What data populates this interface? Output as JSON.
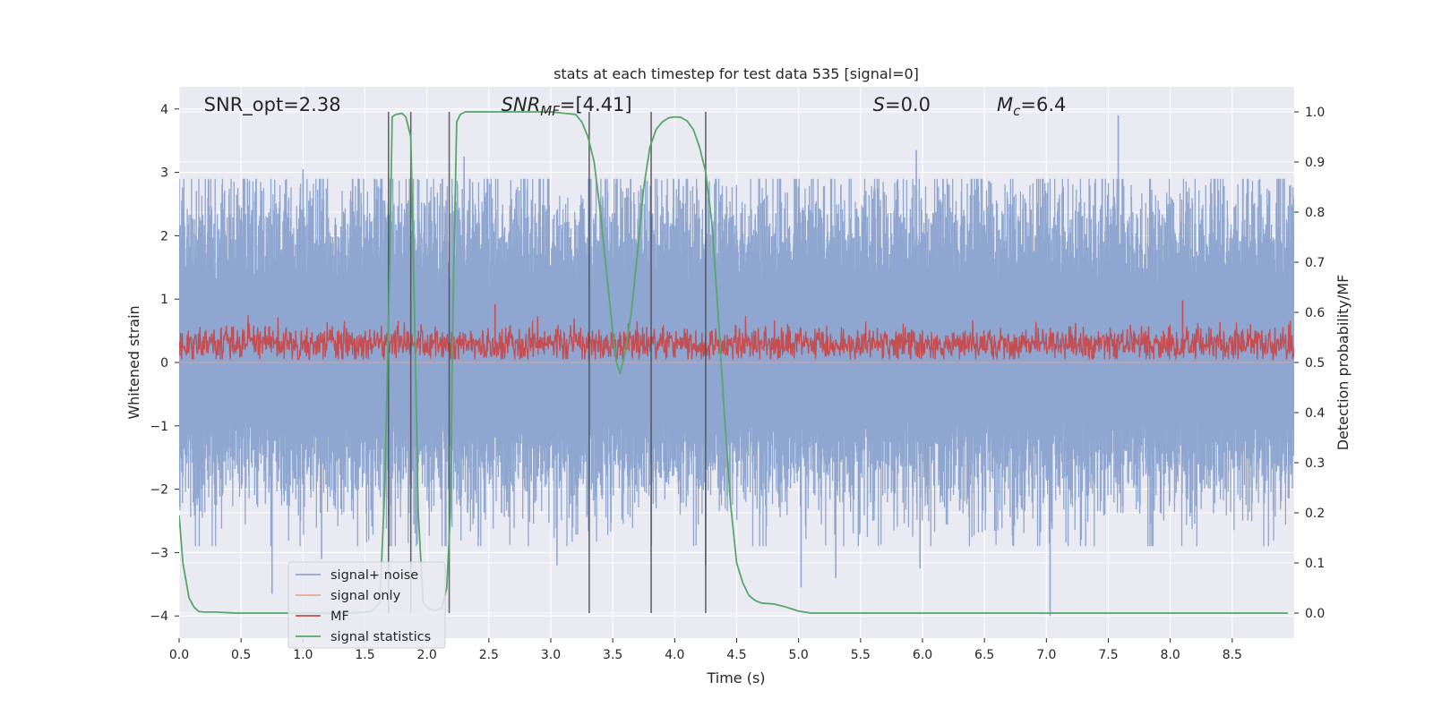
{
  "chart_data": {
    "type": "line",
    "title": "stats at each timestep for test data 535 [signal=0]",
    "xlabel": "Time (s)",
    "ylabel": "Whitened strain",
    "y2label": "Detection probability/MF",
    "xlim": [
      0,
      9.0
    ],
    "ylim": [
      -4.35,
      4.35
    ],
    "y2lim": [
      -0.05,
      1.05
    ],
    "x_ticks": [
      0.0,
      0.5,
      1.0,
      1.5,
      2.0,
      2.5,
      3.0,
      3.5,
      4.0,
      4.5,
      5.0,
      5.5,
      6.0,
      6.5,
      7.0,
      7.5,
      8.0,
      8.5
    ],
    "x_tick_labels": [
      "0.0",
      "0.5",
      "1.0",
      "1.5",
      "2.0",
      "2.5",
      "3.0",
      "3.5",
      "4.0",
      "4.5",
      "5.0",
      "5.5",
      "6.0",
      "6.5",
      "7.0",
      "7.5",
      "8.0",
      "8.5"
    ],
    "y_ticks": [
      -4,
      -3,
      -2,
      -1,
      0,
      1,
      2,
      3,
      4
    ],
    "y_tick_labels": [
      "−4",
      "−3",
      "−2",
      "−1",
      "0",
      "1",
      "2",
      "3",
      "4"
    ],
    "y2_ticks": [
      0.0,
      0.1,
      0.2,
      0.3,
      0.4,
      0.5,
      0.6,
      0.7,
      0.8,
      0.9,
      1.0
    ],
    "y2_tick_labels": [
      "0.0",
      "0.1",
      "0.2",
      "0.3",
      "0.4",
      "0.5",
      "0.6",
      "0.7",
      "0.8",
      "0.9",
      "1.0"
    ],
    "grid": true,
    "legend_position": "lower-left",
    "annotations": [
      {
        "text": "SNR_opt=2.38",
        "x": 0.2
      },
      {
        "text": "SNR",
        "sub": "MF",
        "tail": "=[4.41]",
        "italic": true,
        "x": 2.6
      },
      {
        "text": "S",
        "tail": "=0.0",
        "italic": true,
        "x": 5.6
      },
      {
        "text": "M",
        "sub": "c",
        "tail": "=6.4",
        "italic": true,
        "x": 6.6
      }
    ],
    "vlines": [
      1.69,
      1.87,
      2.18,
      3.31,
      3.81,
      4.25
    ],
    "vline_y2_range": [
      0.0,
      1.0
    ],
    "series": [
      {
        "name": "signal+ noise",
        "color": "#8ea6d0",
        "kind": "noise",
        "axis": "left",
        "amplitude_envelope": [
          2.3,
          -2.1
        ],
        "peaks": [
          {
            "x": 0.75,
            "y": -3.65
          },
          {
            "x": 1.0,
            "y": 3.05
          },
          {
            "x": 1.15,
            "y": -3.1
          },
          {
            "x": 2.3,
            "y": 3.25
          },
          {
            "x": 3.05,
            "y": -3.2
          },
          {
            "x": 4.25,
            "y": -3.2
          },
          {
            "x": 5.02,
            "y": -3.55
          },
          {
            "x": 5.3,
            "y": -3.4
          },
          {
            "x": 5.95,
            "y": 3.35
          },
          {
            "x": 5.98,
            "y": -3.25
          },
          {
            "x": 7.03,
            "y": -4.0
          },
          {
            "x": 7.58,
            "y": 3.9
          },
          {
            "x": 8.92,
            "y": 2.9
          }
        ]
      },
      {
        "name": "signal only",
        "color": "#e9a98e",
        "kind": "flat",
        "axis": "left",
        "values": 0.0
      },
      {
        "name": "MF",
        "color": "#c44e52",
        "kind": "noise",
        "axis": "left",
        "mean": 0.3,
        "amplitude_envelope": [
          0.75,
          0.05
        ],
        "peaks": [
          {
            "x": 2.55,
            "y": 0.92
          },
          {
            "x": 8.1,
            "y": 0.98
          }
        ]
      },
      {
        "name": "signal statistics",
        "color": "#55a868",
        "kind": "line",
        "axis": "right",
        "x": [
          0.0,
          0.03,
          0.08,
          0.12,
          0.16,
          0.2,
          0.3,
          0.45,
          0.6,
          0.8,
          1.0,
          1.2,
          1.4,
          1.55,
          1.62,
          1.66,
          1.7,
          1.72,
          1.75,
          1.8,
          1.83,
          1.87,
          1.9,
          1.93,
          1.97,
          2.01,
          2.06,
          2.12,
          2.16,
          2.19,
          2.21,
          2.24,
          2.27,
          2.31,
          2.38,
          2.5,
          2.7,
          3.0,
          3.2,
          3.25,
          3.3,
          3.35,
          3.4,
          3.45,
          3.5,
          3.53,
          3.56,
          3.6,
          3.65,
          3.7,
          3.75,
          3.8,
          3.85,
          3.9,
          3.95,
          4.0,
          4.05,
          4.1,
          4.15,
          4.2,
          4.25,
          4.3,
          4.35,
          4.4,
          4.45,
          4.5,
          4.55,
          4.6,
          4.65,
          4.7,
          4.8,
          4.9,
          5.0,
          5.1,
          5.5,
          6.0,
          7.0,
          8.0,
          8.95
        ],
        "values": [
          0.195,
          0.1,
          0.03,
          0.012,
          0.003,
          0.002,
          0.002,
          0.0,
          0.0,
          0.0,
          0.0,
          0.0,
          0.0,
          0.003,
          0.02,
          0.25,
          0.7,
          0.99,
          0.995,
          0.997,
          0.99,
          0.95,
          0.6,
          0.2,
          0.02,
          0.01,
          0.005,
          0.01,
          0.05,
          0.2,
          0.6,
          0.98,
          0.995,
          1.0,
          1.0,
          1.0,
          1.0,
          1.0,
          0.995,
          0.98,
          0.95,
          0.9,
          0.8,
          0.68,
          0.56,
          0.5,
          0.478,
          0.52,
          0.6,
          0.72,
          0.85,
          0.93,
          0.965,
          0.98,
          0.988,
          0.99,
          0.989,
          0.982,
          0.965,
          0.93,
          0.88,
          0.78,
          0.6,
          0.4,
          0.22,
          0.1,
          0.06,
          0.035,
          0.025,
          0.02,
          0.018,
          0.012,
          0.004,
          0.0,
          0.0,
          0.0,
          0.0,
          0.0,
          0.0
        ]
      }
    ]
  },
  "colors": {
    "plot_background": "#eaeaf2",
    "grid": "#ffffff",
    "vline": "#4d4d4d"
  }
}
